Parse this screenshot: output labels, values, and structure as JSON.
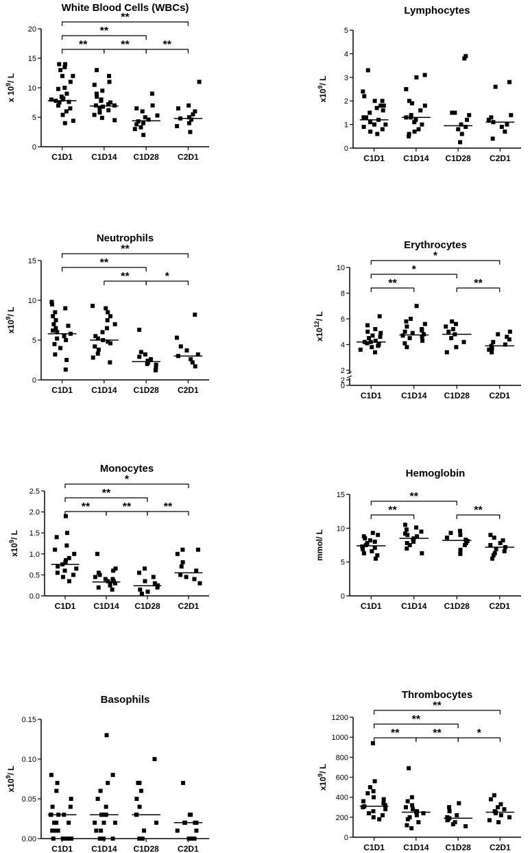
{
  "chart_data": [
    {
      "type": "scatter",
      "title": "White Blood Cells (WBCs)",
      "ylabel": "x 10^9/ L",
      "categories": [
        "C1D1",
        "C1D14",
        "C1D28",
        "C2D1"
      ],
      "ylim": [
        0,
        20
      ],
      "yticks": [
        "0",
        "5",
        "10",
        "15",
        "20"
      ],
      "points": [
        [
          4.0,
          4.4,
          5.4,
          6.0,
          6.5,
          7.0,
          7.5,
          7.6,
          7.8,
          8.0,
          8.0,
          8.2,
          8.5,
          9.0,
          9.8,
          10.0,
          11.0,
          12.0,
          12.0,
          13.0,
          13.5,
          14.0,
          14.0
        ],
        [
          4.5,
          4.9,
          5.4,
          5.8,
          6.2,
          6.5,
          6.8,
          7.0,
          7.0,
          7.2,
          7.5,
          7.8,
          8.0,
          8.5,
          9.0,
          9.5,
          10.5,
          11.0,
          12.0,
          13.0
        ],
        [
          2.0,
          3.0,
          3.3,
          3.8,
          4.0,
          4.3,
          4.6,
          5.0,
          5.3,
          6.0,
          6.5,
          7.0,
          9.0
        ],
        [
          2.5,
          3.5,
          4.0,
          4.6,
          4.8,
          5.0,
          5.5,
          6.0,
          6.5,
          7.0,
          11.0
        ]
      ],
      "medians": [
        7.8,
        6.9,
        4.4,
        4.8
      ],
      "significance": [
        {
          "from": 0,
          "to": 3,
          "label": "**"
        },
        {
          "from": 0,
          "to": 2,
          "label": "**"
        },
        {
          "from": 0,
          "to": 1,
          "label": "**"
        },
        {
          "from": 1,
          "to": 2,
          "label": "**"
        },
        {
          "from": 2,
          "to": 3,
          "label": "**"
        }
      ]
    },
    {
      "type": "scatter",
      "title": "Lymphocytes",
      "ylabel": "x10^9/ L",
      "categories": [
        "C1D1",
        "C1D14",
        "C1D28",
        "C2D1"
      ],
      "ylim": [
        0,
        5
      ],
      "yticks": [
        "0",
        "1",
        "2",
        "3",
        "4",
        "5"
      ],
      "points": [
        [
          0.6,
          0.7,
          0.8,
          0.9,
          1.0,
          1.0,
          1.1,
          1.2,
          1.3,
          1.3,
          1.5,
          1.6,
          1.7,
          1.8,
          1.8,
          2.0,
          2.0,
          2.2,
          2.4,
          3.3
        ],
        [
          0.5,
          0.6,
          0.7,
          0.8,
          1.0,
          1.1,
          1.2,
          1.3,
          1.3,
          1.4,
          1.6,
          1.8,
          1.9,
          2.0,
          2.5,
          3.0,
          3.1
        ],
        [
          0.25,
          0.6,
          0.8,
          0.9,
          1.0,
          1.2,
          1.4,
          1.5,
          1.5,
          3.8,
          3.9
        ],
        [
          0.4,
          0.7,
          0.9,
          1.0,
          1.1,
          1.2,
          1.3,
          1.4,
          2.6,
          2.8
        ]
      ],
      "medians": [
        1.2,
        1.3,
        0.95,
        1.1
      ],
      "significance": []
    },
    {
      "type": "scatter",
      "title": "Neutrophils",
      "ylabel": "x10^9/ L",
      "categories": [
        "C1D1",
        "C1D14",
        "C1D28",
        "C2D1"
      ],
      "ylim": [
        0,
        15
      ],
      "yticks": [
        "0",
        "5",
        "10",
        "15"
      ],
      "points": [
        [
          1.3,
          2.5,
          3.2,
          4.0,
          4.5,
          5.0,
          5.2,
          5.5,
          5.8,
          6.0,
          6.2,
          6.5,
          6.8,
          7.0,
          7.5,
          8.0,
          8.5,
          9.0,
          9.5,
          9.8
        ],
        [
          2.2,
          2.8,
          3.3,
          3.8,
          4.2,
          4.6,
          4.8,
          5.0,
          5.2,
          5.5,
          6.0,
          6.5,
          7.0,
          7.5,
          8.0,
          8.5,
          9.0,
          9.3
        ],
        [
          1.2,
          1.5,
          1.9,
          2.0,
          2.2,
          2.4,
          2.6,
          2.9,
          3.2,
          3.5,
          6.3
        ],
        [
          1.7,
          2.2,
          2.6,
          3.0,
          3.2,
          3.7,
          4.2,
          5.3,
          8.2
        ]
      ],
      "medians": [
        5.8,
        5.0,
        2.3,
        3.0
      ],
      "significance": [
        {
          "from": 0,
          "to": 3,
          "label": "**"
        },
        {
          "from": 0,
          "to": 2,
          "label": "**"
        },
        {
          "from": 1,
          "to": 2,
          "label": "**"
        },
        {
          "from": 2,
          "to": 3,
          "label": "*"
        }
      ]
    },
    {
      "type": "scatter",
      "title": "Erythrocytes",
      "ylabel": "x10^12/ L",
      "categories": [
        "C1D1",
        "C1D14",
        "C1D28",
        "C2D1"
      ],
      "ylim": [
        0,
        10
      ],
      "yticks": [
        "0",
        "2",
        "2",
        "4",
        "6",
        "8",
        "10"
      ],
      "axis_break": [
        0,
        2
      ],
      "points": [
        [
          3.4,
          3.6,
          3.8,
          3.9,
          4.0,
          4.1,
          4.2,
          4.2,
          4.3,
          4.5,
          4.6,
          4.7,
          4.9,
          5.0,
          5.2,
          5.5,
          6.2
        ],
        [
          3.8,
          4.1,
          4.3,
          4.5,
          4.6,
          4.7,
          4.8,
          4.9,
          5.0,
          5.1,
          5.2,
          5.4,
          5.6,
          5.8,
          6.0,
          7.0
        ],
        [
          3.4,
          3.8,
          4.2,
          4.5,
          4.8,
          5.0,
          5.2,
          5.4,
          5.6,
          5.8
        ],
        [
          3.4,
          3.6,
          3.7,
          3.9,
          4.0,
          4.2,
          4.4,
          4.6,
          4.8,
          5.0
        ]
      ],
      "medians": [
        4.2,
        4.75,
        4.8,
        3.9
      ],
      "significance": [
        {
          "from": 0,
          "to": 3,
          "label": "*"
        },
        {
          "from": 0,
          "to": 2,
          "label": "*"
        },
        {
          "from": 0,
          "to": 1,
          "label": "**"
        },
        {
          "from": 2,
          "to": 3,
          "label": "**"
        }
      ]
    },
    {
      "type": "scatter",
      "title": "Monocytes",
      "ylabel": "x10^9/ L",
      "categories": [
        "C1D1",
        "C1D14",
        "C1D28",
        "C2D1"
      ],
      "ylim": [
        0,
        2.5
      ],
      "yticks": [
        "0.0",
        "0.5",
        "1.0",
        "1.5",
        "2.0",
        "2.5"
      ],
      "points": [
        [
          0.35,
          0.45,
          0.5,
          0.55,
          0.6,
          0.65,
          0.7,
          0.75,
          0.8,
          0.85,
          0.9,
          1.0,
          1.1,
          1.2,
          1.4,
          1.5,
          1.9
        ],
        [
          0.15,
          0.2,
          0.25,
          0.3,
          0.3,
          0.35,
          0.35,
          0.4,
          0.4,
          0.45,
          0.5,
          0.55,
          0.6,
          0.65,
          1.0
        ],
        [
          0.05,
          0.1,
          0.15,
          0.2,
          0.25,
          0.3,
          0.35,
          0.45,
          0.55,
          0.65
        ],
        [
          0.3,
          0.4,
          0.45,
          0.5,
          0.6,
          0.7,
          0.8,
          1.0,
          1.1,
          1.1
        ]
      ],
      "medians": [
        0.75,
        0.33,
        0.24,
        0.55
      ],
      "significance": [
        {
          "from": 0,
          "to": 3,
          "label": "*"
        },
        {
          "from": 0,
          "to": 2,
          "label": "**"
        },
        {
          "from": 0,
          "to": 1,
          "label": "**"
        },
        {
          "from": 1,
          "to": 2,
          "label": "**"
        },
        {
          "from": 2,
          "to": 3,
          "label": "**"
        }
      ]
    },
    {
      "type": "scatter",
      "title": "Hemoglobin",
      "ylabel": "mmol/ L",
      "categories": [
        "C1D1",
        "C1D14",
        "C1D28",
        "C2D1"
      ],
      "ylim": [
        0,
        15
      ],
      "yticks": [
        "0",
        "5",
        "10",
        "15"
      ],
      "points": [
        [
          5.5,
          6.0,
          6.3,
          6.6,
          6.9,
          7.1,
          7.3,
          7.5,
          7.8,
          8.0,
          8.2,
          8.5,
          8.8,
          9.0,
          9.3
        ],
        [
          6.3,
          7.0,
          7.5,
          7.8,
          8.0,
          8.3,
          8.5,
          8.8,
          9.0,
          9.2,
          9.5,
          9.8,
          10.1,
          10.5
        ],
        [
          6.2,
          6.8,
          7.5,
          7.8,
          8.1,
          8.3,
          8.6,
          9.0,
          9.3,
          9.6
        ],
        [
          5.5,
          6.0,
          6.3,
          6.6,
          6.9,
          7.2,
          7.5,
          7.8,
          8.2,
          8.6,
          9.0
        ]
      ],
      "medians": [
        7.4,
        8.5,
        8.2,
        7.2
      ],
      "significance": [
        {
          "from": 0,
          "to": 2,
          "label": "**"
        },
        {
          "from": 0,
          "to": 1,
          "label": "**"
        },
        {
          "from": 2,
          "to": 3,
          "label": "**"
        }
      ]
    },
    {
      "type": "scatter",
      "title": "Basophils",
      "ylabel": "x10^9/ L",
      "categories": [
        "C1D1",
        "C1D14",
        "C1D28",
        "C2D1"
      ],
      "ylim": [
        0,
        0.15
      ],
      "yticks": [
        "0.00",
        "0.05",
        "0.10",
        "0.15"
      ],
      "points": [
        [
          0,
          0,
          0,
          0,
          0,
          0.01,
          0.01,
          0.01,
          0.02,
          0.02,
          0.02,
          0.03,
          0.03,
          0.03,
          0.03,
          0.04,
          0.04,
          0.05,
          0.06,
          0.07,
          0.08
        ],
        [
          0,
          0,
          0,
          0,
          0.01,
          0.01,
          0.02,
          0.02,
          0.02,
          0.03,
          0.03,
          0.03,
          0.03,
          0.04,
          0.05,
          0.06,
          0.07,
          0.08,
          0.13
        ],
        [
          0,
          0,
          0.01,
          0.02,
          0.03,
          0.03,
          0.04,
          0.05,
          0.06,
          0.07,
          0.07,
          0.1
        ],
        [
          0,
          0,
          0,
          0.01,
          0.01,
          0.02,
          0.02,
          0.02,
          0.02,
          0.03,
          0.03,
          0.07
        ]
      ],
      "medians": [
        0.03,
        0.03,
        0.03,
        0.02
      ],
      "significance": []
    },
    {
      "type": "scatter",
      "title": "Thrombocytes",
      "ylabel": "x10^9/ L",
      "categories": [
        "C1D1",
        "C1D14",
        "C1D28",
        "C2D1"
      ],
      "ylim": [
        0,
        1200
      ],
      "yticks": [
        "0",
        "200",
        "400",
        "600",
        "800",
        "1000",
        "1200"
      ],
      "points": [
        [
          180,
          200,
          220,
          240,
          260,
          280,
          300,
          310,
          320,
          340,
          360,
          380,
          400,
          440,
          460,
          500,
          560,
          940
        ],
        [
          90,
          120,
          150,
          180,
          200,
          220,
          240,
          250,
          260,
          280,
          300,
          320,
          360,
          400,
          690
        ],
        [
          110,
          130,
          150,
          170,
          180,
          190,
          200,
          220,
          260,
          300,
          340
        ],
        [
          150,
          170,
          200,
          220,
          240,
          250,
          260,
          280,
          300,
          330,
          380,
          420
        ]
      ],
      "medians": [
        310,
        250,
        190,
        250
      ],
      "significance": [
        {
          "from": 0,
          "to": 3,
          "label": "**"
        },
        {
          "from": 0,
          "to": 2,
          "label": "**"
        },
        {
          "from": 0,
          "to": 1,
          "label": "**"
        },
        {
          "from": 1,
          "to": 2,
          "label": "**"
        },
        {
          "from": 2,
          "to": 3,
          "label": "*"
        }
      ]
    }
  ]
}
